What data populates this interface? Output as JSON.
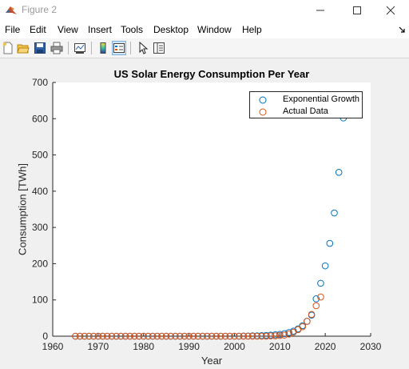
{
  "window": {
    "title": "Figure 2",
    "icon": "matlab-icon",
    "minimize_icon": "minimize-icon",
    "maximize_icon": "maximize-icon",
    "close_icon": "close-icon"
  },
  "menubar": {
    "items": [
      "File",
      "Edit",
      "View",
      "Insert",
      "Tools",
      "Desktop",
      "Window",
      "Help"
    ],
    "dock_icon": "dock-arrow-icon"
  },
  "toolbar": {
    "icons": [
      "new-figure-icon",
      "open-file-icon",
      "save-icon",
      "print-icon",
      "link-plot-icon",
      "insert-colorbar-icon",
      "insert-legend-icon",
      "edit-plot-arrow-icon",
      "property-inspector-icon"
    ]
  },
  "colors": {
    "series1": "#0072bd",
    "series2": "#d95319",
    "axis": "#262626",
    "plot_background": "#ffffff",
    "figure_background": "#f0f0f0"
  },
  "chart_data": {
    "type": "scatter",
    "title": "US Solar Energy Consumption Per Year",
    "xlabel": "Year",
    "ylabel": "Consumption [TWh]",
    "xlim": [
      1960,
      2030
    ],
    "ylim": [
      0,
      700
    ],
    "xticks": [
      1960,
      1970,
      1980,
      1990,
      2000,
      2010,
      2020,
      2030
    ],
    "yticks": [
      0,
      100,
      200,
      300,
      400,
      500,
      600,
      700
    ],
    "grid": false,
    "legend_position": "top-right",
    "marker": "open-circle",
    "series": [
      {
        "name": "Exponential Growth",
        "x": [
          1965,
          1966,
          1967,
          1968,
          1969,
          1970,
          1971,
          1972,
          1973,
          1974,
          1975,
          1976,
          1977,
          1978,
          1979,
          1980,
          1981,
          1982,
          1983,
          1984,
          1985,
          1986,
          1987,
          1988,
          1989,
          1990,
          1991,
          1992,
          1993,
          1994,
          1995,
          1996,
          1997,
          1998,
          1999,
          2000,
          2001,
          2002,
          2003,
          2004,
          2005,
          2006,
          2007,
          2008,
          2009,
          2010,
          2011,
          2012,
          2013,
          2014,
          2015,
          2016,
          2017,
          2018,
          2019,
          2020,
          2021,
          2022,
          2023,
          2024
        ],
        "y": [
          0,
          0,
          0,
          0,
          0,
          0,
          0,
          0,
          0,
          0,
          0,
          0,
          0,
          0,
          0,
          0,
          0,
          0,
          0,
          0,
          0,
          0,
          0,
          0,
          0,
          0,
          0,
          0,
          0,
          0,
          0,
          0,
          0,
          0,
          0,
          0,
          0,
          0.5,
          0.5,
          1,
          1,
          1.5,
          2,
          3,
          4,
          5,
          7,
          10,
          14,
          20,
          29,
          41,
          58,
          103,
          146,
          194,
          256,
          340,
          452,
          602
        ]
      },
      {
        "name": "Actual Data",
        "x": [
          1965,
          1966,
          1967,
          1968,
          1969,
          1970,
          1971,
          1972,
          1973,
          1974,
          1975,
          1976,
          1977,
          1978,
          1979,
          1980,
          1981,
          1982,
          1983,
          1984,
          1985,
          1986,
          1987,
          1988,
          1989,
          1990,
          1991,
          1992,
          1993,
          1994,
          1995,
          1996,
          1997,
          1998,
          1999,
          2000,
          2001,
          2002,
          2003,
          2004,
          2005,
          2006,
          2007,
          2008,
          2009,
          2010,
          2011,
          2012,
          2013,
          2014,
          2015,
          2016,
          2017,
          2018,
          2019
        ],
        "y": [
          0,
          0,
          0,
          0,
          0,
          0,
          0,
          0,
          0,
          0,
          0,
          0,
          0,
          0,
          0,
          0,
          0,
          0,
          0,
          0,
          0,
          0,
          0,
          0,
          0,
          0,
          0,
          0,
          0,
          0,
          0,
          0,
          0,
          0,
          0,
          0,
          0,
          0,
          0,
          0,
          0,
          0,
          0,
          1,
          1,
          2,
          3,
          6,
          11,
          18,
          26,
          41,
          60,
          84,
          108
        ]
      }
    ]
  }
}
